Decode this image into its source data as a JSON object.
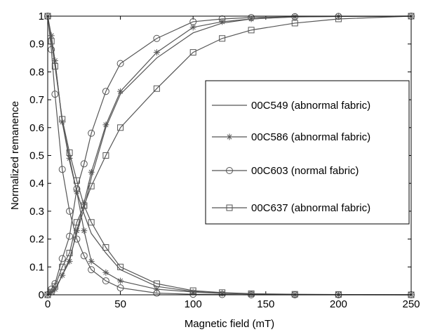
{
  "chart_data": {
    "type": "line",
    "xlabel": "Magnetic field (mT)",
    "ylabel": "Normalized remanence",
    "xlim": [
      0,
      250
    ],
    "ylim": [
      0,
      1
    ],
    "xticks": [
      0,
      50,
      100,
      150,
      200,
      250
    ],
    "yticks": [
      0,
      0.1,
      0.2,
      0.3,
      0.4,
      0.5,
      0.6,
      0.7,
      0.8,
      0.9,
      1
    ],
    "grid": false,
    "legend_position": "right",
    "series": [
      {
        "name": "00C549 (abnormal fabric)",
        "marker": "none",
        "color": "#555555",
        "curves": [
          {
            "x": [
              0,
              2.5,
              5,
              10,
              15,
              20,
              25,
              30,
              40,
              50,
              75,
              100,
              120,
              140,
              170,
              200,
              250
            ],
            "y": [
              0,
              0.005,
              0.015,
              0.07,
              0.13,
              0.22,
              0.31,
              0.42,
              0.6,
              0.72,
              0.85,
              0.94,
              0.975,
              0.99,
              0.997,
              0.999,
              1.0
            ]
          },
          {
            "x": [
              0,
              2.5,
              5,
              10,
              15,
              20,
              25,
              30,
              40,
              50,
              75,
              100,
              120,
              140,
              170,
              200,
              250
            ],
            "y": [
              1.0,
              0.92,
              0.84,
              0.62,
              0.48,
              0.37,
              0.29,
              0.22,
              0.15,
              0.09,
              0.03,
              0.012,
              0.006,
              0.003,
              0.001,
              0.0005,
              0.0
            ]
          }
        ]
      },
      {
        "name": "00C586 (abnormal fabric)",
        "marker": "star",
        "color": "#555555",
        "curves": [
          {
            "x": [
              0,
              2.5,
              5,
              10,
              15,
              20,
              25,
              30,
              40,
              50,
              75,
              100,
              120,
              140,
              170,
              200,
              250
            ],
            "y": [
              0,
              0.01,
              0.02,
              0.07,
              0.12,
              0.23,
              0.33,
              0.44,
              0.61,
              0.73,
              0.87,
              0.96,
              0.98,
              0.99,
              0.998,
              0.999,
              1.0
            ]
          },
          {
            "x": [
              0,
              2.5,
              5,
              10,
              15,
              20,
              25,
              30,
              40,
              50,
              75,
              100,
              120,
              140,
              170,
              200,
              250
            ],
            "y": [
              1.0,
              0.93,
              0.84,
              0.62,
              0.49,
              0.37,
              0.23,
              0.12,
              0.08,
              0.05,
              0.02,
              0.01,
              0.005,
              0.003,
              0.001,
              0.0005,
              0.0
            ]
          }
        ]
      },
      {
        "name": "00C603 (normal fabric)",
        "marker": "circle",
        "color": "#555555",
        "curves": [
          {
            "x": [
              0,
              2.5,
              5,
              10,
              15,
              20,
              25,
              30,
              40,
              50,
              75,
              100,
              120,
              140,
              170,
              200,
              250
            ],
            "y": [
              0,
              0.02,
              0.04,
              0.13,
              0.21,
              0.38,
              0.47,
              0.58,
              0.73,
              0.83,
              0.92,
              0.98,
              0.99,
              0.995,
              0.998,
              0.999,
              1.0
            ]
          },
          {
            "x": [
              0,
              2.5,
              5,
              10,
              15,
              20,
              25,
              30,
              40,
              50,
              75,
              100,
              120,
              140,
              170,
              200,
              250
            ],
            "y": [
              1.0,
              0.88,
              0.72,
              0.45,
              0.3,
              0.2,
              0.14,
              0.09,
              0.05,
              0.025,
              0.006,
              0.002,
              0.001,
              0.0,
              0.0,
              0.0,
              0.0
            ]
          }
        ]
      },
      {
        "name": "00C637 (abnormal fabric)",
        "marker": "square",
        "color": "#555555",
        "curves": [
          {
            "x": [
              0,
              2.5,
              5,
              10,
              15,
              20,
              25,
              30,
              40,
              50,
              75,
              100,
              120,
              140,
              170,
              200,
              250
            ],
            "y": [
              0,
              0.01,
              0.03,
              0.1,
              0.15,
              0.26,
              0.32,
              0.39,
              0.5,
              0.6,
              0.74,
              0.87,
              0.92,
              0.95,
              0.975,
              0.99,
              1.0
            ]
          },
          {
            "x": [
              0,
              2.5,
              5,
              10,
              15,
              20,
              25,
              30,
              40,
              50,
              75,
              100,
              120,
              140,
              170,
              200,
              250
            ],
            "y": [
              1.0,
              0.91,
              0.82,
              0.63,
              0.51,
              0.41,
              0.32,
              0.26,
              0.17,
              0.1,
              0.04,
              0.015,
              0.008,
              0.004,
              0.002,
              0.001,
              0.0
            ]
          }
        ]
      }
    ]
  }
}
